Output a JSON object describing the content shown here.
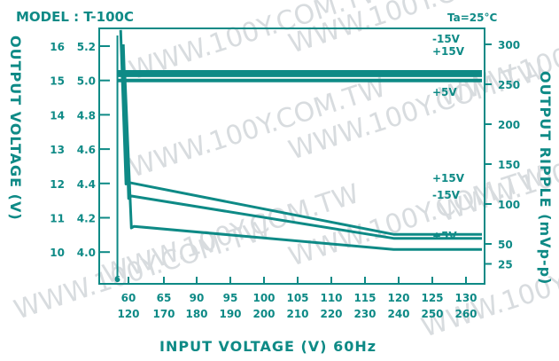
{
  "chart_data": {
    "type": "line",
    "title": "MODEL : T-100C",
    "condition": "Ta=25°C",
    "xlabel": "INPUT VOLTAGE (V) 60Hz",
    "ylabel_left": "OUTPUT VOLTAGE (V)",
    "ylabel_right": "OUTPUT RIPPLE (mVp-p)",
    "watermark": "WWW.100Y.COM.TW",
    "x_ticks_top": [
      "60",
      "65",
      "90",
      "95",
      "100",
      "105",
      "110",
      "115",
      "120",
      "125",
      "130"
    ],
    "x_ticks_bottom": [
      "120",
      "170",
      "180",
      "190",
      "200",
      "210",
      "220",
      "230",
      "240",
      "250",
      "260"
    ],
    "y_ticks_left_outer": [
      "16",
      "15",
      "14",
      "13",
      "12",
      "11",
      "10"
    ],
    "y_ticks_left_inner": [
      "5.2",
      "5.0",
      "4.8",
      "4.6",
      "4.4",
      "4.2",
      "4.0"
    ],
    "y_ticks_right": [
      "300",
      "250",
      "200",
      "150",
      "100",
      "50",
      "25"
    ],
    "start_marker": "6",
    "xlim": [
      60,
      132
    ],
    "ylim_ripple": [
      0,
      320
    ],
    "series": [
      {
        "name": "-15V",
        "group": "output voltage",
        "axis": "left_outer",
        "values": [
          [
            63.5,
            15.25
          ],
          [
            64.4,
            15.25
          ],
          [
            131.5,
            15.25
          ]
        ]
      },
      {
        "name": "+15V",
        "group": "output voltage",
        "axis": "left_outer",
        "values": [
          [
            63.5,
            15.15
          ],
          [
            64.4,
            15.15
          ],
          [
            131.5,
            15.15
          ]
        ]
      },
      {
        "name": "+5V",
        "group": "output voltage",
        "axis": "left_inner",
        "values": [
          [
            63.5,
            5.0
          ],
          [
            64.4,
            5.0
          ],
          [
            131.5,
            5.0
          ]
        ]
      },
      {
        "name": "+15V",
        "group": "output ripple",
        "axis": "right",
        "values": [
          [
            64.0,
            318
          ],
          [
            65.0,
            125
          ],
          [
            65.5,
            127
          ],
          [
            115,
            62
          ],
          [
            131.5,
            62
          ]
        ]
      },
      {
        "name": "-15V",
        "group": "output ripple",
        "axis": "right",
        "values": [
          [
            64.5,
            300
          ],
          [
            65.5,
            107
          ],
          [
            66.0,
            110
          ],
          [
            115,
            57
          ],
          [
            131.5,
            57
          ]
        ]
      },
      {
        "name": "+5V",
        "group": "output ripple",
        "axis": "right",
        "values": [
          [
            64.8,
            260
          ],
          [
            66.0,
            70
          ],
          [
            66.5,
            72
          ],
          [
            115,
            43
          ],
          [
            131.5,
            43
          ]
        ]
      }
    ]
  }
}
